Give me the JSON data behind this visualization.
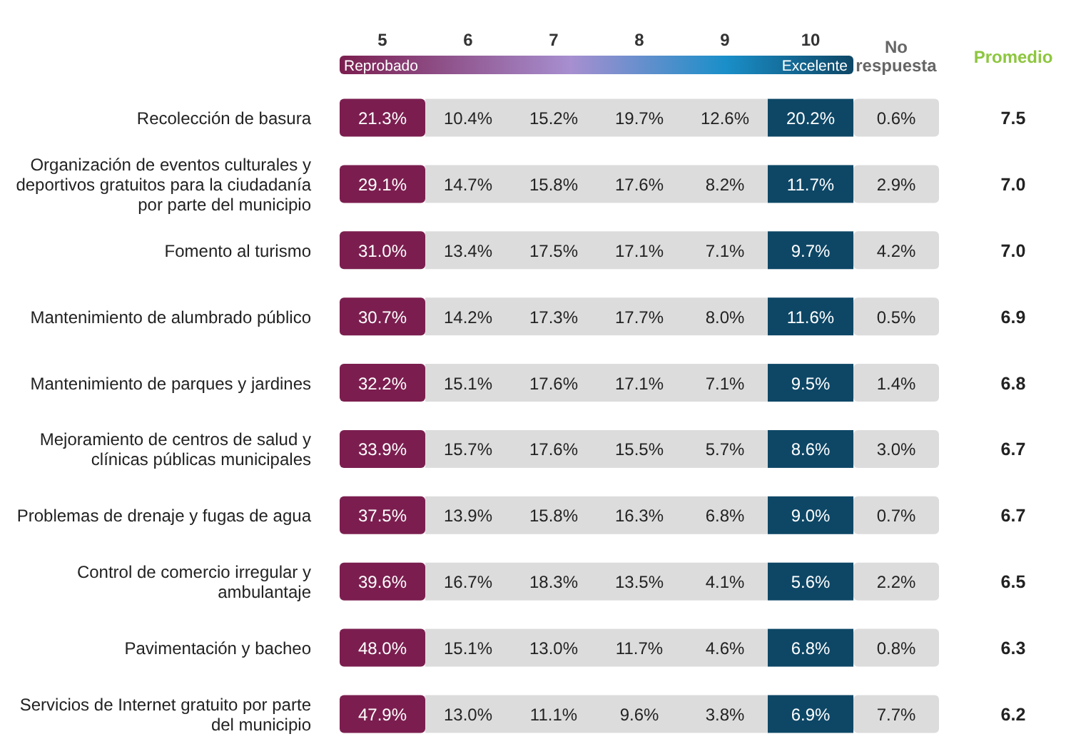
{
  "chart_data": {
    "type": "heatmap",
    "categories": [
      "5",
      "6",
      "7",
      "8",
      "9",
      "10",
      "No respuesta"
    ],
    "y_categories": [
      "Recolección de basura",
      "Organización de eventos culturales y deportivos gratuitos para la ciudadanía por parte del municipio",
      "Fomento al turismo",
      "Mantenimiento de alumbrado público",
      "Mantenimiento de parques y jardines",
      "Mejoramiento de centros de salud y clínicas públicas municipales",
      "Problemas de drenaje y fugas de agua",
      "Control de comercio irregular y ambulantaje",
      "Pavimentación y bacheo",
      "Servicios de Internet gratuito por parte del municipio"
    ],
    "y2label": "Promedio",
    "y2_categories": [
      "7.5",
      "7.0",
      "7.0",
      "6.9",
      "6.8",
      "6.7",
      "6.7",
      "6.5",
      "6.3",
      "6.2"
    ],
    "colors": [
      "#7b1e4f",
      "#dcdcdc",
      "#dcdcdc",
      "#dcdcdc",
      "#dcdcdc",
      "#0e4766",
      "#dcdcdc"
    ],
    "annotations": [
      "Reprobado",
      "Excelente"
    ],
    "cells": [
      [
        21.3,
        10.4,
        15.2,
        19.7,
        12.6,
        20.2,
        0.6
      ],
      [
        29.1,
        14.7,
        15.8,
        17.6,
        8.2,
        11.7,
        2.9
      ],
      [
        31.0,
        13.4,
        17.5,
        17.1,
        7.1,
        9.7,
        4.2
      ],
      [
        30.7,
        14.2,
        17.3,
        17.7,
        8.0,
        11.6,
        0.5
      ],
      [
        32.2,
        15.1,
        17.6,
        17.1,
        7.1,
        9.5,
        1.4
      ],
      [
        33.9,
        15.7,
        17.6,
        15.5,
        5.7,
        8.6,
        3.0
      ],
      [
        37.5,
        13.9,
        15.8,
        16.3,
        6.8,
        9.0,
        0.7
      ],
      [
        39.6,
        16.7,
        18.3,
        13.5,
        4.1,
        5.6,
        2.2
      ],
      [
        48.0,
        15.1,
        13.0,
        11.7,
        4.6,
        6.8,
        0.8
      ],
      [
        47.9,
        13.0,
        11.1,
        9.6,
        3.8,
        6.9,
        7.7
      ]
    ],
    "cell_labels": [
      [
        "21.3%",
        "10.4%",
        "15.2%",
        "19.7%",
        "12.6%",
        "20.2%",
        "0.6%"
      ],
      [
        "29.1%",
        "14.7%",
        "15.8%",
        "17.6%",
        "8.2%",
        "11.7%",
        "2.9%"
      ],
      [
        "31.0%",
        "13.4%",
        "17.5%",
        "17.1%",
        "7.1%",
        "9.7%",
        "4.2%"
      ],
      [
        "30.7%",
        "14.2%",
        "17.3%",
        "17.7%",
        "8.0%",
        "11.6%",
        "0.5%"
      ],
      [
        "32.2%",
        "15.1%",
        "17.6%",
        "17.1%",
        "7.1%",
        "9.5%",
        "1.4%"
      ],
      [
        "33.9%",
        "15.7%",
        "17.6%",
        "15.5%",
        "5.7%",
        "8.6%",
        "3.0%"
      ],
      [
        "37.5%",
        "13.9%",
        "15.8%",
        "16.3%",
        "6.8%",
        "9.0%",
        "0.7%"
      ],
      [
        "39.6%",
        "16.7%",
        "18.3%",
        "13.5%",
        "4.1%",
        "5.6%",
        "2.2%"
      ],
      [
        "48.0%",
        "15.1%",
        "13.0%",
        "11.7%",
        "4.6%",
        "6.8%",
        "0.8%"
      ],
      [
        "47.9%",
        "13.0%",
        "11.1%",
        "9.6%",
        "3.8%",
        "6.9%",
        "7.7%"
      ]
    ]
  }
}
